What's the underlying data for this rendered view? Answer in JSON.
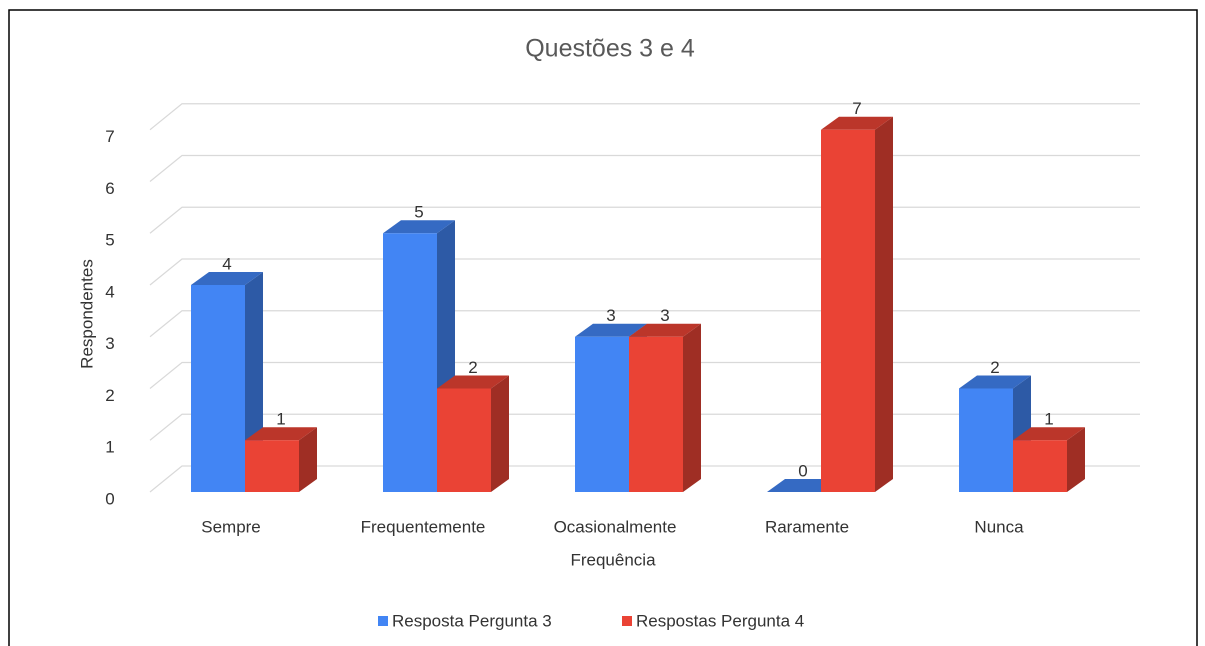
{
  "chart_data": {
    "type": "bar3d",
    "title": "Questões 3 e 4",
    "x_label": "Frequência",
    "y_label": "Respondentes",
    "categories": [
      "Sempre",
      "Frequentemente",
      "Ocasionalmente",
      "Raramente",
      "Nunca"
    ],
    "series": [
      {
        "name": "Resposta Pergunta 3",
        "color": "#4285f4",
        "values": [
          4,
          5,
          3,
          0,
          2
        ]
      },
      {
        "name": "Respostas Pergunta 4",
        "color": "#ea4335",
        "values": [
          1,
          2,
          3,
          7,
          1
        ]
      }
    ],
    "ylim": [
      0,
      7
    ],
    "yticks": [
      0,
      1,
      2,
      3,
      4,
      5,
      6,
      7
    ],
    "grid": true,
    "legend": "bottom"
  }
}
